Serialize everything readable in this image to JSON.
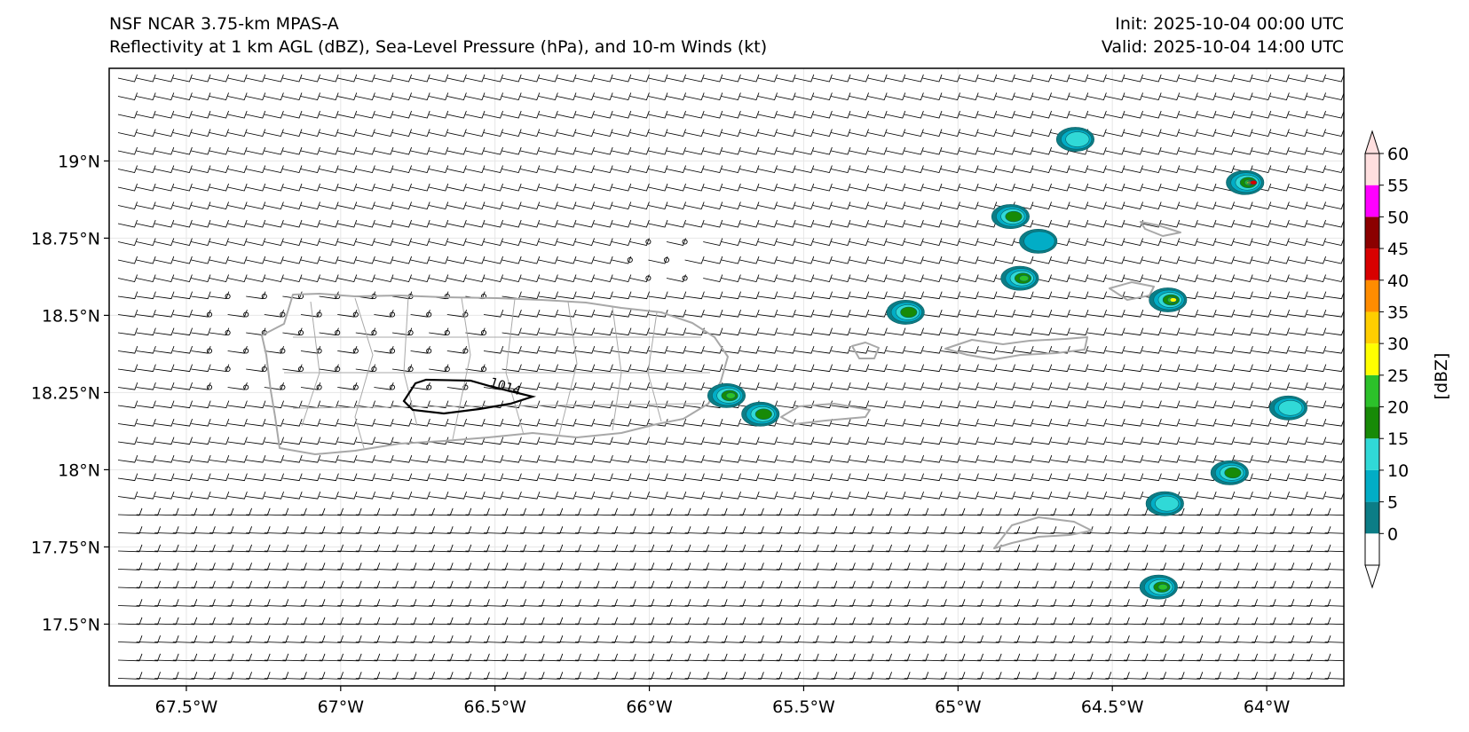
{
  "header": {
    "model": "NSF NCAR 3.75-km MPAS-A",
    "fields": "Reflectivity at 1 km AGL (dBZ), Sea-Level Pressure (hPa), and 10-m Winds (kt)",
    "init": "Init: 2025-10-04 00:00 UTC",
    "valid": "Valid: 2025-10-04 14:00 UTC"
  },
  "map": {
    "lon_range": [
      -67.75,
      -63.75
    ],
    "lat_range": [
      17.3,
      19.3
    ],
    "lon_ticks": [
      "67.5°W",
      "67°W",
      "66.5°W",
      "66°W",
      "65.5°W",
      "65°W",
      "64.5°W",
      "64°W"
    ],
    "lat_ticks": [
      "19°N",
      "18.75°N",
      "18.5°N",
      "18.25°N",
      "18°N",
      "17.75°N",
      "17.5°N"
    ],
    "isobar_label": "1014",
    "coast_color": "#a8a8a8",
    "grid_color": "#e6e6e6"
  },
  "colorbar": {
    "label": "[dBZ]",
    "ticks": [
      "0",
      "5",
      "10",
      "15",
      "20",
      "25",
      "30",
      "35",
      "40",
      "45",
      "50",
      "55",
      "60"
    ],
    "colors": [
      "#ffffff",
      "#0c7d86",
      "#02adc6",
      "#30d9d7",
      "#178a07",
      "#2cc12a",
      "#ffff00",
      "#ffce00",
      "#ff8c00",
      "#d80000",
      "#8b0000",
      "#ff00ff",
      "#ffdfdf"
    ]
  },
  "chart_data": {
    "type": "heatmap",
    "title": "Reflectivity at 1 km AGL (dBZ), Sea-Level Pressure (hPa), and 10-m Winds (kt)",
    "reflectivity_cells": [
      {
        "lon": -64.62,
        "lat": 19.07,
        "max_dbz": 15
      },
      {
        "lon": -64.07,
        "lat": 18.93,
        "max_dbz": 45
      },
      {
        "lon": -64.83,
        "lat": 18.82,
        "max_dbz": 20
      },
      {
        "lon": -64.74,
        "lat": 18.74,
        "max_dbz": 10
      },
      {
        "lon": -64.8,
        "lat": 18.62,
        "max_dbz": 25
      },
      {
        "lon": -64.32,
        "lat": 18.55,
        "max_dbz": 30
      },
      {
        "lon": -65.17,
        "lat": 18.51,
        "max_dbz": 20
      },
      {
        "lon": -65.75,
        "lat": 18.24,
        "max_dbz": 25
      },
      {
        "lon": -65.64,
        "lat": 18.18,
        "max_dbz": 20
      },
      {
        "lon": -63.93,
        "lat": 18.2,
        "max_dbz": 15
      },
      {
        "lon": -64.12,
        "lat": 17.99,
        "max_dbz": 20
      },
      {
        "lon": -64.33,
        "lat": 17.89,
        "max_dbz": 15
      },
      {
        "lon": -64.35,
        "lat": 17.62,
        "max_dbz": 25
      }
    ],
    "isobars": [
      {
        "value": 1014,
        "unit": "hPa"
      }
    ]
  }
}
